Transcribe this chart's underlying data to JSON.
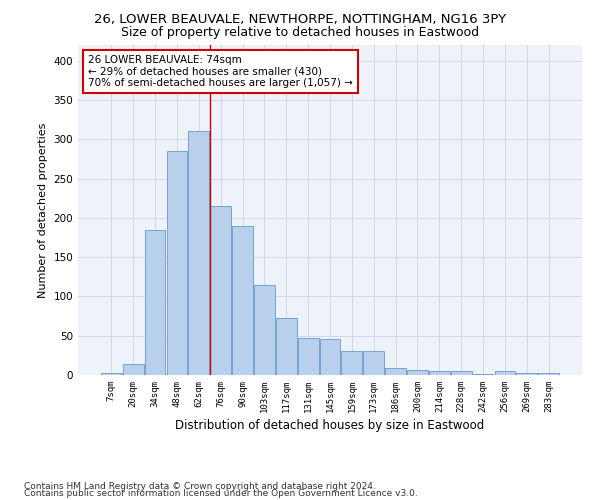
{
  "title1": "26, LOWER BEAUVALE, NEWTHORPE, NOTTINGHAM, NG16 3PY",
  "title2": "Size of property relative to detached houses in Eastwood",
  "xlabel": "Distribution of detached houses by size in Eastwood",
  "ylabel": "Number of detached properties",
  "categories": [
    "7sqm",
    "20sqm",
    "34sqm",
    "48sqm",
    "62sqm",
    "76sqm",
    "90sqm",
    "103sqm",
    "117sqm",
    "131sqm",
    "145sqm",
    "159sqm",
    "173sqm",
    "186sqm",
    "200sqm",
    "214sqm",
    "228sqm",
    "242sqm",
    "256sqm",
    "269sqm",
    "283sqm"
  ],
  "values": [
    2,
    14,
    185,
    285,
    311,
    215,
    190,
    115,
    72,
    47,
    46,
    31,
    31,
    9,
    7,
    5,
    5,
    1,
    5,
    2,
    2
  ],
  "bar_color": "#b8d0eb",
  "bar_edge_color": "#6699cc",
  "vline_x": 4.5,
  "vline_color": "#cc0000",
  "annotation_text": "26 LOWER BEAUVALE: 74sqm\n← 29% of detached houses are smaller (430)\n70% of semi-detached houses are larger (1,057) →",
  "annotation_box_color": "#ffffff",
  "annotation_box_edge": "#cc0000",
  "ylim": [
    0,
    420
  ],
  "yticks": [
    0,
    50,
    100,
    150,
    200,
    250,
    300,
    350,
    400
  ],
  "footer1": "Contains HM Land Registry data © Crown copyright and database right 2024.",
  "footer2": "Contains public sector information licensed under the Open Government Licence v3.0.",
  "bg_color": "#eef2f9",
  "title1_fontsize": 9.5,
  "title2_fontsize": 9,
  "xlabel_fontsize": 8.5,
  "ylabel_fontsize": 8,
  "annotation_fontsize": 7.5,
  "footer_fontsize": 6.5,
  "grid_color": "#c8d4e8"
}
